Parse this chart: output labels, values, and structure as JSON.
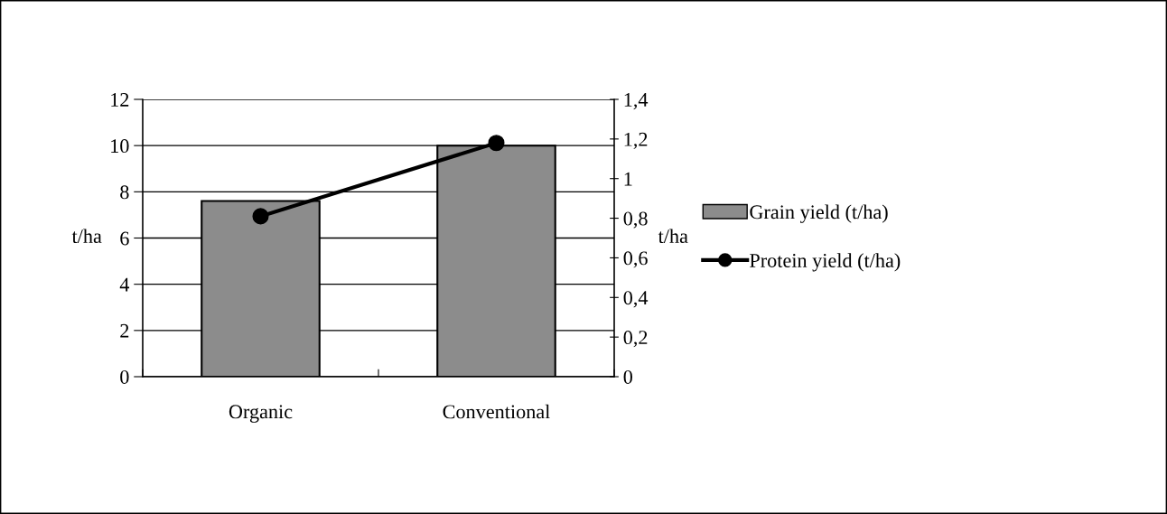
{
  "chart_data": {
    "type": "bar",
    "categories": [
      "Organic",
      "Conventional"
    ],
    "ylabel": "t/ha",
    "y2label": "t/ha",
    "series": [
      {
        "name": "Grain yield (t/ha)",
        "color": "#8c8c8c",
        "values": [
          7.6,
          10.0
        ]
      },
      {
        "name": "Protein yield (t/ha)",
        "type": "line",
        "axis": "y2",
        "color": "#000000",
        "marker": "circle",
        "values": [
          0.81,
          1.18
        ]
      }
    ],
    "ylim": [
      0,
      12
    ],
    "yticks": [
      0,
      2,
      4,
      6,
      8,
      10,
      12
    ],
    "y2lim": [
      0,
      1.4
    ],
    "y2ticks": [
      0,
      {
        "value": 0.2,
        "label": "0,2"
      },
      {
        "value": 0.4,
        "label": "0,4"
      },
      {
        "value": 0.6,
        "label": "0,6"
      },
      {
        "value": 0.8,
        "label": "0,8"
      },
      1,
      {
        "value": 1.2,
        "label": "1,2"
      },
      {
        "value": 1.4,
        "label": "1,4"
      }
    ],
    "grid": "y",
    "legend": "right"
  }
}
